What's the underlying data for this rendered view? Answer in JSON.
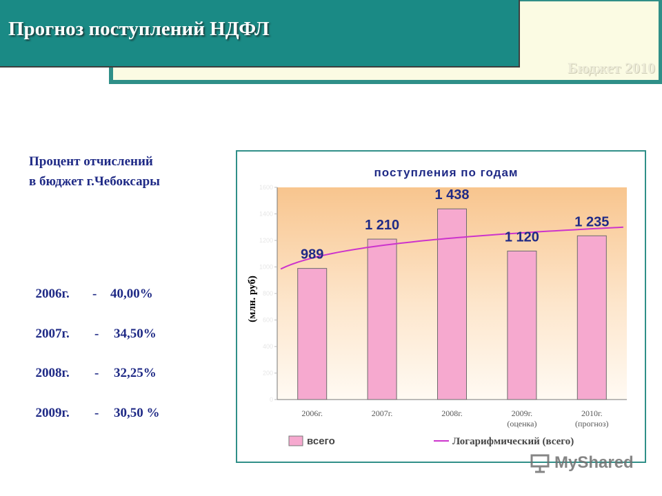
{
  "header": {
    "title": "Прогноз поступлений НДФЛ",
    "watermark": "Бюджет 2010"
  },
  "percent": {
    "title_line1": "Процент отчислений",
    "title_line2": "в бюджет г.Чебоксары",
    "rows": [
      {
        "year": "2006г.",
        "dash": "-",
        "value": "40,00%"
      },
      {
        "year": "2007г.",
        "dash": "-",
        "value": "34,50%"
      },
      {
        "year": "2008г.",
        "dash": "-",
        "value": "32,25%"
      },
      {
        "year": "2009г.",
        "dash": "-",
        "value": "30,50 %"
      }
    ]
  },
  "footer": {
    "watermark": "MyShared"
  },
  "chart_data": {
    "type": "bar",
    "title": "поступления по годам",
    "ylabel": "(млн. руб)",
    "categories": [
      "2006г.",
      "2007г.",
      "2008г.",
      "2009г. (оценка)",
      "2010г. (прогноз)"
    ],
    "category_lines": [
      [
        "2006г."
      ],
      [
        "2007г."
      ],
      [
        "2008г."
      ],
      [
        "2009г.",
        "(оценка)"
      ],
      [
        "2010г.",
        "(прогноз)"
      ]
    ],
    "series": [
      {
        "name": "всего",
        "values": [
          989,
          1210,
          1438,
          1120,
          1235
        ],
        "data_labels": [
          "989",
          "1 210",
          "1 438",
          "1 120",
          "1 235"
        ],
        "color": "#f6a9cf"
      }
    ],
    "trendline": {
      "name": "Логарифмический (всего)",
      "type": "logarithmic",
      "color": "#cc33cc"
    },
    "ylim": [
      0,
      1600
    ],
    "yticks": [
      "0",
      "200",
      "400",
      "600",
      "800",
      "1000",
      "1200",
      "1400",
      "1600"
    ],
    "grid": false,
    "legend": "bottom"
  }
}
